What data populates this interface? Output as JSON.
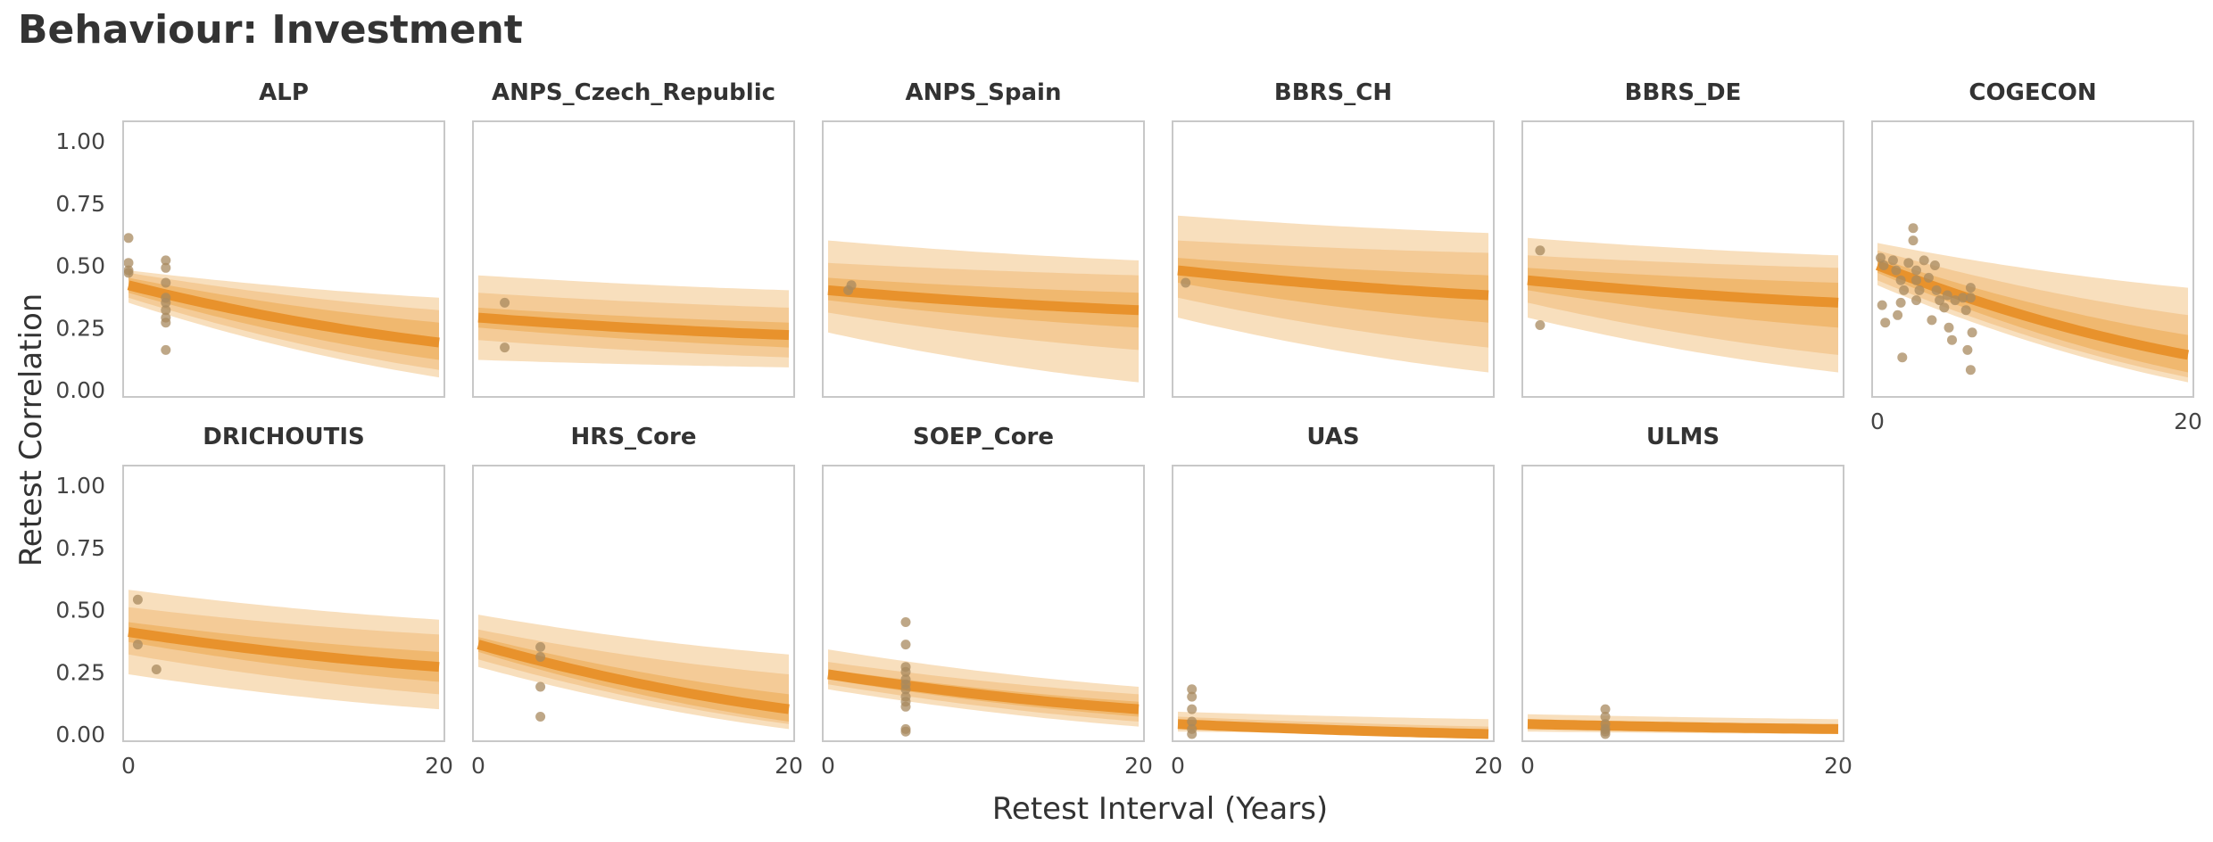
{
  "title": "Behaviour: Investment",
  "colors": {
    "band_outer": "#f8dfbd",
    "band_2": "#f4cb97",
    "band_3": "#f0b86f",
    "line": "#e8922c",
    "points": "#a88a5f",
    "panel_border": "#c8c8c8"
  },
  "chart_data": {
    "type": "line",
    "xlabel": "Retest Interval (Years)",
    "ylabel": "Retest Correlation",
    "xlim": [
      0,
      20
    ],
    "ylim": [
      0,
      1
    ],
    "xticks": [
      "0",
      "20"
    ],
    "yticks": [
      "0.00",
      "0.25",
      "0.50",
      "0.75",
      "1.00"
    ],
    "grid": false,
    "panels": [
      {
        "name": "ALP",
        "curve": {
          "start": 0.42,
          "end": 0.19
        },
        "bands": [
          [
            0.39,
            0.45,
            0.12,
            0.27
          ],
          [
            0.37,
            0.47,
            0.08,
            0.32
          ],
          [
            0.35,
            0.48,
            0.05,
            0.37
          ]
        ],
        "points": [
          [
            0,
            0.61
          ],
          [
            0,
            0.51
          ],
          [
            0,
            0.48
          ],
          [
            0,
            0.47
          ],
          [
            2.4,
            0.52
          ],
          [
            2.4,
            0.49
          ],
          [
            2.4,
            0.43
          ],
          [
            2.4,
            0.37
          ],
          [
            2.4,
            0.35
          ],
          [
            2.4,
            0.32
          ],
          [
            2.4,
            0.29
          ],
          [
            2.4,
            0.27
          ],
          [
            2.4,
            0.16
          ]
        ]
      },
      {
        "name": "ANPS_Czech_Republic",
        "curve": {
          "start": 0.29,
          "end": 0.22
        },
        "bands": [
          [
            0.25,
            0.33,
            0.17,
            0.27
          ],
          [
            0.2,
            0.39,
            0.13,
            0.33
          ],
          [
            0.12,
            0.46,
            0.09,
            0.4
          ]
        ],
        "points": [
          [
            1.7,
            0.35
          ],
          [
            1.7,
            0.17
          ]
        ]
      },
      {
        "name": "ANPS_Spain",
        "curve": {
          "start": 0.4,
          "end": 0.32
        },
        "bands": [
          [
            0.36,
            0.45,
            0.25,
            0.39
          ],
          [
            0.31,
            0.51,
            0.16,
            0.46
          ],
          [
            0.23,
            0.6,
            0.03,
            0.52
          ]
        ],
        "points": [
          [
            1.5,
            0.42
          ],
          [
            1.3,
            0.4
          ]
        ]
      },
      {
        "name": "BBRS_CH",
        "curve": {
          "start": 0.48,
          "end": 0.38
        },
        "bands": [
          [
            0.43,
            0.53,
            0.27,
            0.46
          ],
          [
            0.37,
            0.6,
            0.17,
            0.55
          ],
          [
            0.29,
            0.7,
            0.07,
            0.63
          ]
        ],
        "points": [
          [
            0.5,
            0.43
          ]
        ]
      },
      {
        "name": "BBRS_DE",
        "curve": {
          "start": 0.44,
          "end": 0.35
        },
        "bands": [
          [
            0.4,
            0.49,
            0.25,
            0.43
          ],
          [
            0.35,
            0.54,
            0.14,
            0.49
          ],
          [
            0.29,
            0.61,
            0.07,
            0.54
          ]
        ],
        "points": [
          [
            0.8,
            0.56
          ],
          [
            0.8,
            0.26
          ]
        ]
      },
      {
        "name": "COGECON",
        "curve": {
          "start": 0.5,
          "end": 0.14
        },
        "bands": [
          [
            0.47,
            0.53,
            0.07,
            0.22
          ],
          [
            0.44,
            0.56,
            0.05,
            0.3
          ],
          [
            0.42,
            0.59,
            0.03,
            0.41
          ]
        ],
        "points": [
          [
            0.2,
            0.53
          ],
          [
            0.4,
            0.5
          ],
          [
            0.3,
            0.34
          ],
          [
            0.5,
            0.27
          ],
          [
            1,
            0.52
          ],
          [
            1.2,
            0.48
          ],
          [
            1.5,
            0.44
          ],
          [
            1.7,
            0.4
          ],
          [
            1.5,
            0.35
          ],
          [
            1.3,
            0.3
          ],
          [
            1.6,
            0.13
          ],
          [
            2,
            0.51
          ],
          [
            2.3,
            0.65
          ],
          [
            2.3,
            0.6
          ],
          [
            2.5,
            0.48
          ],
          [
            2.5,
            0.44
          ],
          [
            2.7,
            0.4
          ],
          [
            2.5,
            0.36
          ],
          [
            3,
            0.52
          ],
          [
            3.3,
            0.45
          ],
          [
            3.5,
            0.28
          ],
          [
            3.7,
            0.5
          ],
          [
            3.8,
            0.4
          ],
          [
            4,
            0.36
          ],
          [
            4.3,
            0.33
          ],
          [
            4.5,
            0.38
          ],
          [
            4.6,
            0.25
          ],
          [
            4.8,
            0.2
          ],
          [
            5,
            0.36
          ],
          [
            5.5,
            0.37
          ],
          [
            5.7,
            0.32
          ],
          [
            6,
            0.41
          ],
          [
            6,
            0.37
          ],
          [
            6.1,
            0.23
          ],
          [
            5.8,
            0.16
          ],
          [
            6,
            0.08
          ]
        ]
      },
      {
        "name": "DRICHOUTIS",
        "curve": {
          "start": 0.41,
          "end": 0.27
        },
        "bands": [
          [
            0.37,
            0.45,
            0.21,
            0.33
          ],
          [
            0.32,
            0.51,
            0.16,
            0.4
          ],
          [
            0.24,
            0.58,
            0.1,
            0.46
          ]
        ],
        "points": [
          [
            0.6,
            0.54
          ],
          [
            0.6,
            0.36
          ],
          [
            1.8,
            0.26
          ]
        ]
      },
      {
        "name": "HRS_Core",
        "curve": {
          "start": 0.36,
          "end": 0.1
        },
        "bands": [
          [
            0.33,
            0.39,
            0.05,
            0.16
          ],
          [
            0.3,
            0.42,
            0.04,
            0.24
          ],
          [
            0.27,
            0.48,
            0.02,
            0.32
          ]
        ],
        "points": [
          [
            4,
            0.35
          ],
          [
            4,
            0.31
          ],
          [
            4,
            0.19
          ],
          [
            4,
            0.07
          ]
        ]
      },
      {
        "name": "SOEP_Core",
        "curve": {
          "start": 0.24,
          "end": 0.1
        },
        "bands": [
          [
            0.22,
            0.26,
            0.07,
            0.13
          ],
          [
            0.2,
            0.29,
            0.05,
            0.16
          ],
          [
            0.18,
            0.34,
            0.03,
            0.19
          ]
        ],
        "points": [
          [
            5,
            0.45
          ],
          [
            5,
            0.36
          ],
          [
            5,
            0.27
          ],
          [
            5,
            0.25
          ],
          [
            5,
            0.22
          ],
          [
            5,
            0.2
          ],
          [
            5,
            0.18
          ],
          [
            5,
            0.15
          ],
          [
            5,
            0.13
          ],
          [
            5,
            0.11
          ],
          [
            5,
            0.02
          ],
          [
            5,
            0.01
          ]
        ]
      },
      {
        "name": "UAS",
        "curve": {
          "start": 0.04,
          "end": 0.0
        },
        "bands": [
          [
            0.03,
            0.05,
            0.0,
            0.01
          ],
          [
            0.02,
            0.07,
            0.0,
            0.03
          ],
          [
            0.01,
            0.09,
            0.0,
            0.06
          ]
        ],
        "points": [
          [
            0.9,
            0.18
          ],
          [
            0.9,
            0.15
          ],
          [
            0.9,
            0.1
          ],
          [
            0.9,
            0.05
          ],
          [
            0.9,
            0.02
          ],
          [
            0.9,
            0.0
          ]
        ]
      },
      {
        "name": "ULMS",
        "curve": {
          "start": 0.04,
          "end": 0.02
        },
        "bands": [
          [
            0.03,
            0.05,
            0.01,
            0.03
          ],
          [
            0.02,
            0.06,
            0.01,
            0.04
          ],
          [
            0.01,
            0.08,
            0.0,
            0.06
          ]
        ],
        "points": [
          [
            5,
            0.1
          ],
          [
            5,
            0.07
          ],
          [
            5,
            0.04
          ],
          [
            5,
            0.02
          ],
          [
            5,
            0.01
          ],
          [
            5,
            0.0
          ]
        ]
      }
    ]
  }
}
